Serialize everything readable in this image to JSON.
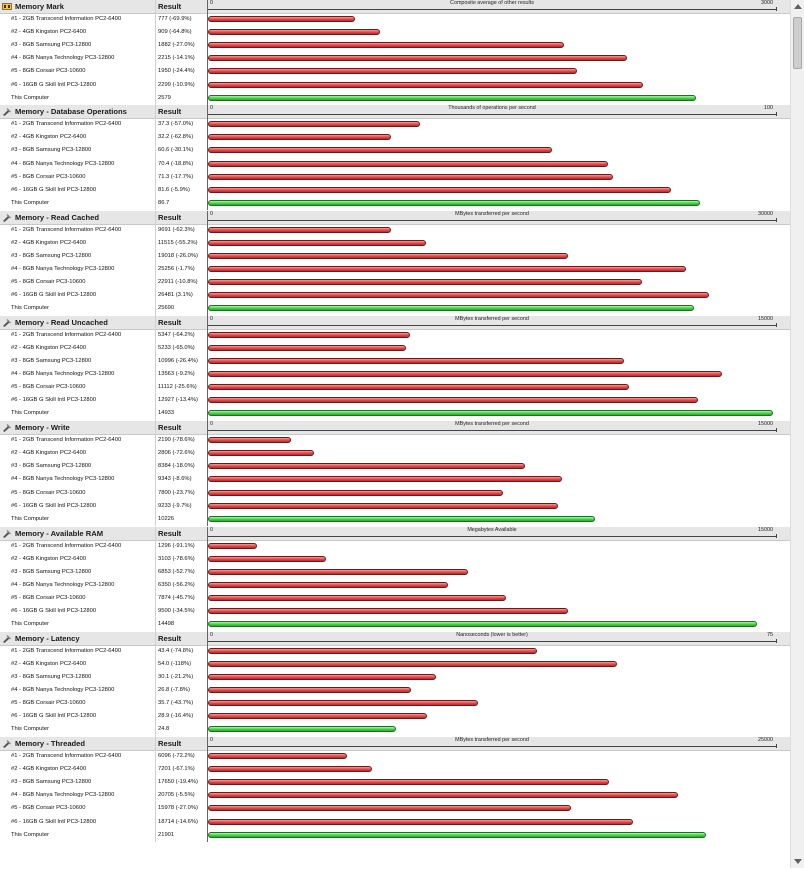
{
  "colors": {
    "comparison_bar": "#e04848",
    "this_computer_bar": "#46d246",
    "header_bg": "#e6e6e6"
  },
  "icons": {
    "memory_mark": "memory-chip-icon",
    "test": "test-tube-icon"
  },
  "result_label": "Result",
  "chart_data": [
    {
      "type": "bar",
      "title": "Memory Mark",
      "xlabel": "Composite average of other results",
      "xlim": [
        0,
        3000
      ],
      "tick_min": "0",
      "tick_max": "3000",
      "categories": [
        "#1 - 2GB Transcend Information PC2-6400",
        "#2 - 4GB Kingston PC2-6400",
        "#3 - 8GB Samsung PC3-12800",
        "#4 - 8GB Nanya Technology PC3-12800",
        "#5 - 8GB Corsair PC3-10600",
        "#6 - 16GB G Skill Intl PC3-12800",
        "This Computer"
      ],
      "values": [
        777,
        909,
        1882,
        2215,
        1950,
        2299,
        2579
      ],
      "results": [
        "777 (-69.9%)",
        "909 (-64.8%)",
        "1882 (-27.0%)",
        "2215 (-14.1%)",
        "1950 (-24.4%)",
        "2299 (-10.9%)",
        "2579"
      ]
    },
    {
      "type": "bar",
      "title": "Memory - Database Operations",
      "xlabel": "Thousands of operations per second",
      "xlim": [
        0,
        100
      ],
      "tick_min": "0",
      "tick_max": "100",
      "categories": [
        "#1 - 2GB Transcend Information PC2-6400",
        "#2 - 4GB Kingston PC2-6400",
        "#3 - 8GB Samsung PC3-12800",
        "#4 - 8GB Nanya Technology PC3-12800",
        "#5 - 8GB Corsair PC3-10600",
        "#6 - 16GB G Skill Intl PC3-12800",
        "This Computer"
      ],
      "values": [
        37.3,
        32.2,
        60.6,
        70.4,
        71.3,
        81.6,
        86.7
      ],
      "results": [
        "37.3 (-57.0%)",
        "32.2 (-62.8%)",
        "60.6 (-30.1%)",
        "70.4 (-18.8%)",
        "71.3 (-17.7%)",
        "81.6 (-5.9%)",
        "86.7"
      ]
    },
    {
      "type": "bar",
      "title": "Memory - Read Cached",
      "xlabel": "MBytes transferred per second",
      "xlim": [
        0,
        30000
      ],
      "tick_min": "0",
      "tick_max": "30000",
      "categories": [
        "#1 - 2GB Transcend Information PC2-6400",
        "#2 - 4GB Kingston PC2-6400",
        "#3 - 8GB Samsung PC3-12800",
        "#4 - 8GB Nanya Technology PC3-12800",
        "#5 - 8GB Corsair PC3-10600",
        "#6 - 16GB G Skill Intl PC3-12800",
        "This Computer"
      ],
      "values": [
        9691,
        11515,
        19018,
        25256,
        22911,
        26481,
        25690
      ],
      "results": [
        "9691 (-62.3%)",
        "11515 (-55.2%)",
        "19018 (-26.0%)",
        "25256 (-1.7%)",
        "22911 (-10.8%)",
        "26481 (3.1%)",
        "25690"
      ]
    },
    {
      "type": "bar",
      "title": "Memory - Read Uncached",
      "xlabel": "MBytes transferred per second",
      "xlim": [
        0,
        15000
      ],
      "tick_min": "0",
      "tick_max": "15000",
      "categories": [
        "#1 - 2GB Transcend Information PC2-6400",
        "#2 - 4GB Kingston PC2-6400",
        "#3 - 8GB Samsung PC3-12800",
        "#4 - 8GB Nanya Technology PC3-12800",
        "#5 - 8GB Corsair PC3-10600",
        "#6 - 16GB G Skill Intl PC3-12800",
        "This Computer"
      ],
      "values": [
        5347,
        5233,
        10996,
        13563,
        11112,
        12927,
        14933
      ],
      "results": [
        "5347 (-64.2%)",
        "5233 (-65.0%)",
        "10996 (-26.4%)",
        "13563 (-9.2%)",
        "11112 (-25.6%)",
        "12927 (-13.4%)",
        "14933"
      ]
    },
    {
      "type": "bar",
      "title": "Memory - Write",
      "xlabel": "MBytes transferred per second",
      "xlim": [
        0,
        15000
      ],
      "tick_min": "0",
      "tick_max": "15000",
      "categories": [
        "#1 - 2GB Transcend Information PC2-6400",
        "#2 - 4GB Kingston PC2-6400",
        "#3 - 8GB Samsung PC3-12800",
        "#4 - 8GB Nanya Technology PC3-12800",
        "#5 - 8GB Corsair PC3-10600",
        "#6 - 16GB G Skill Intl PC3-12800",
        "This Computer"
      ],
      "values": [
        2190,
        2806,
        8384,
        9343,
        7800,
        9233,
        10226
      ],
      "results": [
        "2190 (-78.6%)",
        "2806 (-72.6%)",
        "8384 (-18.0%)",
        "9343 (-8.6%)",
        "7800 (-23.7%)",
        "9233 (-9.7%)",
        "10226"
      ]
    },
    {
      "type": "bar",
      "title": "Memory - Available RAM",
      "xlabel": "Megabytes Available",
      "xlim": [
        0,
        15000
      ],
      "tick_min": "0",
      "tick_max": "15000",
      "categories": [
        "#1 - 2GB Transcend Information PC2-6400",
        "#2 - 4GB Kingston PC2-6400",
        "#3 - 8GB Samsung PC3-12800",
        "#4 - 8GB Nanya Technology PC3-12800",
        "#5 - 8GB Corsair PC3-10600",
        "#6 - 16GB G Skill Intl PC3-12800",
        "This Computer"
      ],
      "values": [
        1296,
        3103,
        6853,
        6350,
        7874,
        9500,
        14498
      ],
      "results": [
        "1296 (-91.1%)",
        "3103 (-78.6%)",
        "6853 (-52.7%)",
        "6350 (-56.2%)",
        "7874 (-45.7%)",
        "9500 (-34.5%)",
        "14498"
      ]
    },
    {
      "type": "bar",
      "title": "Memory - Latency",
      "xlabel": "Nanoseconds (lower is better)",
      "xlim": [
        0,
        75
      ],
      "tick_min": "0",
      "tick_max": "75",
      "categories": [
        "#1 - 2GB Transcend Information PC2-6400",
        "#2 - 4GB Kingston PC2-6400",
        "#3 - 8GB Samsung PC3-12800",
        "#4 - 8GB Nanya Technology PC3-12800",
        "#5 - 8GB Corsair PC3-10600",
        "#6 - 16GB G Skill Intl PC3-12800",
        "This Computer"
      ],
      "values": [
        43.4,
        54.0,
        30.1,
        26.8,
        35.7,
        28.9,
        24.8
      ],
      "results": [
        "43.4 (-74.8%)",
        "54.0 (-118%)",
        "30.1 (-21.2%)",
        "26.8 (-7.8%)",
        "35.7 (-43.7%)",
        "28.9 (-16.4%)",
        "24.8"
      ]
    },
    {
      "type": "bar",
      "title": "Memory - Threaded",
      "xlabel": "MBytes transferred per second",
      "xlim": [
        0,
        25000
      ],
      "tick_min": "0",
      "tick_max": "25000",
      "categories": [
        "#1 - 2GB Transcend Information PC2-6400",
        "#2 - 4GB Kingston PC2-6400",
        "#3 - 8GB Samsung PC3-12800",
        "#4 - 8GB Nanya Technology PC3-12800",
        "#5 - 8GB Corsair PC3-10600",
        "#6 - 16GB G Skill Intl PC3-12800",
        "This Computer"
      ],
      "values": [
        6096,
        7201,
        17650,
        20705,
        15978,
        18714,
        21901
      ],
      "results": [
        "6096 (-72.2%)",
        "7201 (-67.1%)",
        "17650 (-19.4%)",
        "20705 (-5.5%)",
        "15978 (-27.0%)",
        "18714 (-14.6%)",
        "21901"
      ]
    }
  ]
}
